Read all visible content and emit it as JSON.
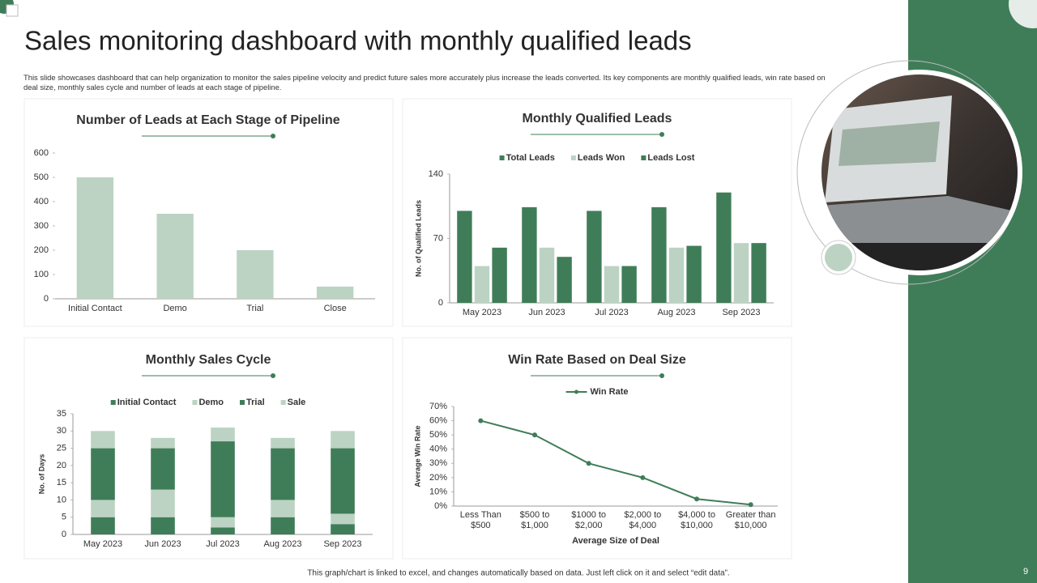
{
  "title": "Sales monitoring dashboard with monthly qualified leads",
  "description": "This slide showcases dashboard that can help organization to monitor the sales pipeline velocity and predict future sales more accurately plus increase the leads converted. Its key components are monthly qualified leads, win rate based on deal size, monthly sales cycle and number of leads at each stage of pipeline.",
  "footer": "This graph/chart is linked to excel, and changes automatically based on data. Just left click on it and select “edit data”.",
  "page_number": "9",
  "chart_data": [
    {
      "type": "bar",
      "title": "Number of Leads at Each Stage of Pipeline",
      "categories": [
        "Initial Contact",
        "Demo",
        "Trial",
        "Close"
      ],
      "values": [
        500,
        350,
        200,
        50
      ],
      "color": "#bcd3c4",
      "ylim": [
        0,
        600
      ],
      "yticks": [
        0,
        100,
        200,
        300,
        400,
        500,
        600
      ]
    },
    {
      "type": "bar",
      "title": "Monthly Qualified Leads",
      "y_label": "No. of Qualified Leads",
      "categories": [
        "May 2023",
        "Jun 2023",
        "Jul 2023",
        "Aug 2023",
        "Sep 2023"
      ],
      "series": [
        {
          "name": "Total Leads",
          "color": "#3f7d58",
          "values": [
            100,
            104,
            100,
            104,
            120
          ]
        },
        {
          "name": "Leads Won",
          "color": "#bcd3c4",
          "values": [
            40,
            60,
            40,
            60,
            65
          ]
        },
        {
          "name": "Leads Lost",
          "color": "#3f7d58",
          "values": [
            60,
            50,
            40,
            62,
            65
          ]
        }
      ],
      "ylim": [
        0,
        140
      ],
      "yticks": [
        0,
        70,
        140
      ]
    },
    {
      "type": "stacked_bar",
      "title": "Monthly Sales Cycle",
      "y_label": "No. of Days",
      "categories": [
        "May 2023",
        "Jun 2023",
        "Jul 2023",
        "Aug 2023",
        "Sep 2023"
      ],
      "series": [
        {
          "name": "Initial Contact",
          "color": "#3f7d58",
          "values": [
            5,
            5,
            2,
            5,
            3
          ]
        },
        {
          "name": "Demo",
          "color": "#bcd3c4",
          "values": [
            5,
            8,
            3,
            5,
            3
          ]
        },
        {
          "name": "Trial",
          "color": "#3f7d58",
          "values": [
            15,
            12,
            22,
            15,
            19
          ]
        },
        {
          "name": "Sale",
          "color": "#bcd3c4",
          "values": [
            5,
            3,
            4,
            3,
            5
          ]
        }
      ],
      "ylim": [
        0,
        35
      ],
      "yticks": [
        0,
        5,
        10,
        15,
        20,
        25,
        30,
        35
      ]
    },
    {
      "type": "line",
      "title": "Win Rate Based on Deal Size",
      "x_label": "Average Size of Deal",
      "y_label": "Average Win Rate",
      "categories": [
        "Less Than $500",
        "$500 to $1,000",
        "$1000 to $2,000",
        "$2,000 to $4,000",
        "$4,000 to $10,000",
        "Greater than $10,000"
      ],
      "series": [
        {
          "name": "Win Rate",
          "color": "#3f7d58",
          "values": [
            60,
            50,
            30,
            20,
            5,
            1
          ]
        }
      ],
      "ylim": [
        0,
        70
      ],
      "yticks": [
        {
          "value": 0,
          "label": "0%"
        },
        {
          "value": 10,
          "label": "10%"
        },
        {
          "value": 20,
          "label": "20%"
        },
        {
          "value": 30,
          "label": "30%"
        },
        {
          "value": 40,
          "label": "40%"
        },
        {
          "value": 50,
          "label": "50%"
        },
        {
          "value": 60,
          "label": "60%"
        },
        {
          "value": 70,
          "label": "70%"
        }
      ]
    }
  ]
}
